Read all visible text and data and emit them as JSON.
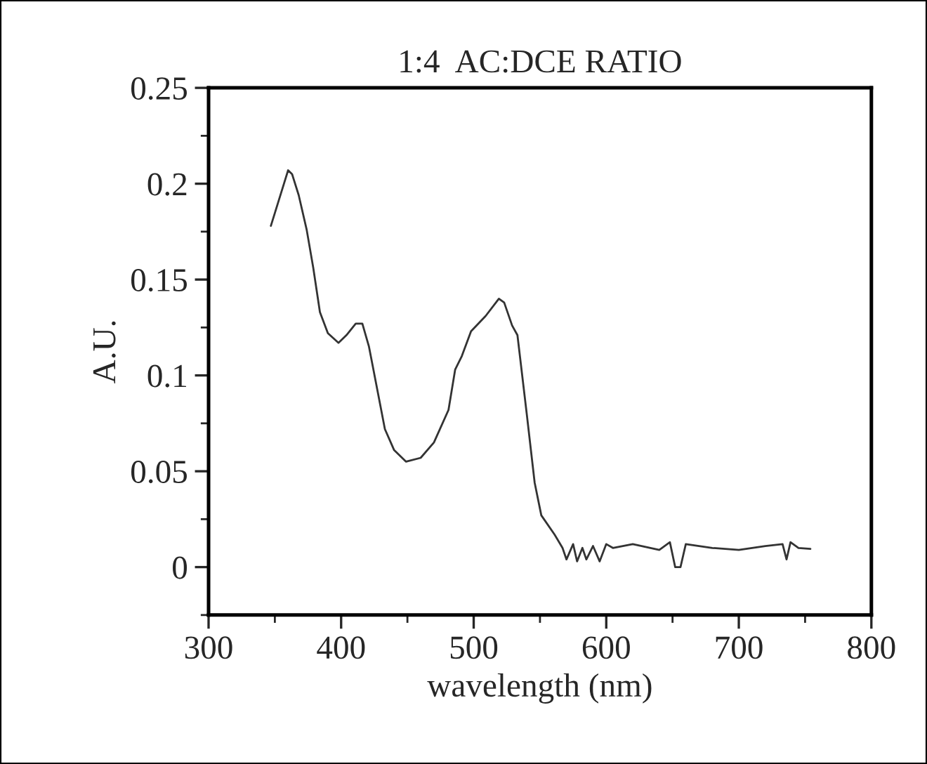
{
  "chart_data": {
    "type": "line",
    "title": "1:4  AC:DCE RATIO",
    "xlabel": "wavelength (nm)",
    "ylabel": "A.U.",
    "xlim": [
      300,
      800
    ],
    "xticks": [
      300,
      400,
      500,
      600,
      700,
      800
    ],
    "ylim": [
      -0.025,
      0.25
    ],
    "yticks": [
      0,
      0.05,
      0.1,
      0.15,
      0.2,
      0.25
    ],
    "grid": false,
    "marker": "none",
    "line_style": "solid",
    "series": [
      {
        "color": "#333333",
        "x": [
          347,
          360,
          363,
          368,
          374,
          379,
          384,
          390,
          398,
          404,
          411,
          416,
          421,
          428,
          433,
          440,
          449,
          460,
          470,
          481,
          486,
          491,
          498,
          509,
          519,
          523,
          529,
          533,
          540,
          546,
          551,
          561,
          567,
          570,
          575,
          578,
          582,
          585,
          590,
          595,
          600,
          605,
          620,
          640,
          648,
          652,
          656,
          660,
          680,
          700,
          720,
          733,
          736,
          739,
          745,
          754
        ],
        "values": [
          0.178,
          0.207,
          0.205,
          0.194,
          0.176,
          0.156,
          0.133,
          0.122,
          0.117,
          0.121,
          0.127,
          0.127,
          0.115,
          0.09,
          0.072,
          0.061,
          0.055,
          0.057,
          0.065,
          0.082,
          0.103,
          0.11,
          0.123,
          0.131,
          0.14,
          0.138,
          0.126,
          0.121,
          0.08,
          0.044,
          0.027,
          0.017,
          0.01,
          0.004,
          0.012,
          0.003,
          0.01,
          0.004,
          0.011,
          0.003,
          0.012,
          0.01,
          0.012,
          0.009,
          0.013,
          0.0,
          0.0,
          0.012,
          0.01,
          0.009,
          0.011,
          0.012,
          0.004,
          0.013,
          0.01,
          0.0095
        ]
      }
    ]
  }
}
